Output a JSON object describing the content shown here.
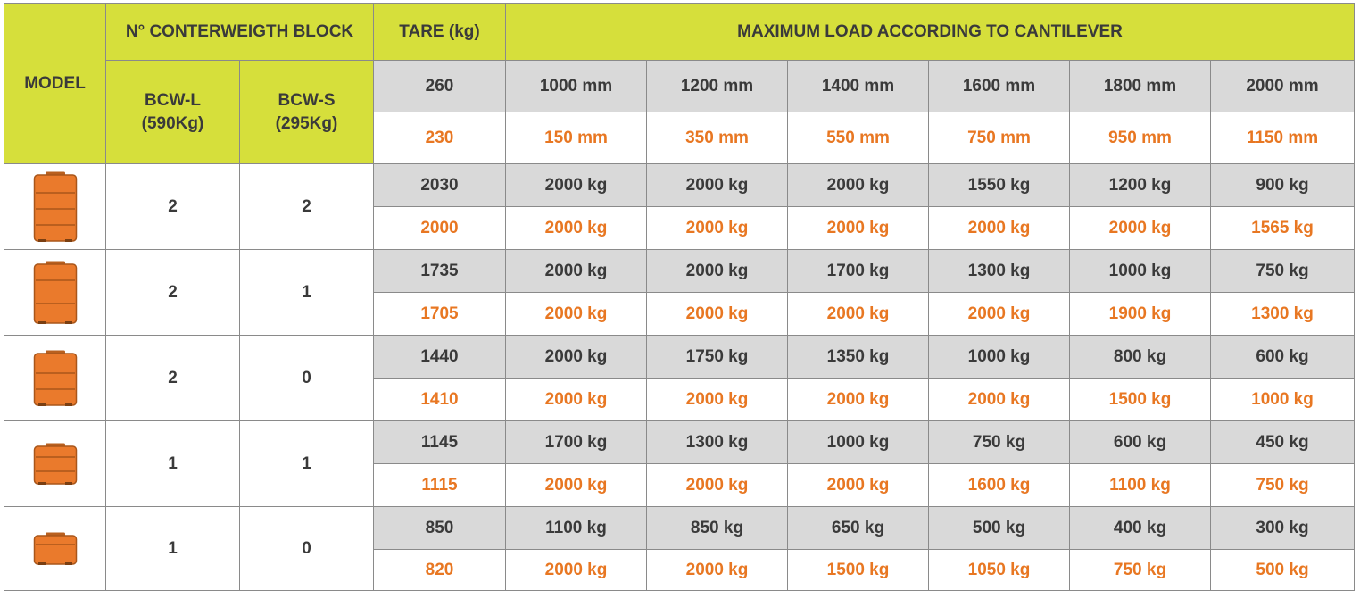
{
  "header": {
    "model": "MODEL",
    "counterweight": "N° CONTERWEIGTH BLOCK",
    "tare": "TARE (kg)",
    "max_load": "MAXIMUM LOAD ACCORDING TO CANTILEVER",
    "bcw_l_line1": "BCW-L",
    "bcw_l_line2": "(590Kg)",
    "bcw_s_line1": "BCW-S",
    "bcw_s_line2": "(295Kg)",
    "tare_gray": "260",
    "tare_orange": "230",
    "cantilevers_gray": [
      "1000 mm",
      "1200 mm",
      "1400 mm",
      "1600 mm",
      "1800 mm",
      "2000 mm"
    ],
    "cantilevers_orange": [
      "150 mm",
      "350 mm",
      "550 mm",
      "750 mm",
      "950 mm",
      "1150 mm"
    ]
  },
  "colors": {
    "header_bg": "#d6df3b",
    "gray_row": "#d9d9d9",
    "orange_text": "#e87722",
    "dark_text": "#3a3a3a"
  },
  "rows": [
    {
      "icon": "counterweight-stack-4-icon",
      "bcw_l": "2",
      "bcw_s": "2",
      "gray": {
        "tare": "2030",
        "loads": [
          "2000 kg",
          "2000 kg",
          "2000 kg",
          "1550 kg",
          "1200 kg",
          "900 kg"
        ]
      },
      "orange": {
        "tare": "2000",
        "loads": [
          "2000 kg",
          "2000 kg",
          "2000 kg",
          "2000 kg",
          "2000 kg",
          "1565 kg"
        ]
      }
    },
    {
      "icon": "counterweight-stack-3-icon",
      "bcw_l": "2",
      "bcw_s": "1",
      "gray": {
        "tare": "1735",
        "loads": [
          "2000 kg",
          "2000 kg",
          "1700 kg",
          "1300 kg",
          "1000 kg",
          "750 kg"
        ]
      },
      "orange": {
        "tare": "1705",
        "loads": [
          "2000 kg",
          "2000 kg",
          "2000 kg",
          "2000 kg",
          "1900 kg",
          "1300 kg"
        ]
      }
    },
    {
      "icon": "counterweight-stack-2l-icon",
      "bcw_l": "2",
      "bcw_s": "0",
      "gray": {
        "tare": "1440",
        "loads": [
          "2000 kg",
          "1750 kg",
          "1350 kg",
          "1000 kg",
          "800 kg",
          "600 kg"
        ]
      },
      "orange": {
        "tare": "1410",
        "loads": [
          "2000 kg",
          "2000 kg",
          "2000 kg",
          "2000 kg",
          "1500 kg",
          "1000 kg"
        ]
      }
    },
    {
      "icon": "counterweight-stack-2-icon",
      "bcw_l": "1",
      "bcw_s": "1",
      "gray": {
        "tare": "1145",
        "loads": [
          "1700 kg",
          "1300 kg",
          "1000 kg",
          "750 kg",
          "600 kg",
          "450 kg"
        ]
      },
      "orange": {
        "tare": "1115",
        "loads": [
          "2000 kg",
          "2000 kg",
          "2000 kg",
          "1600 kg",
          "1100 kg",
          "750 kg"
        ]
      }
    },
    {
      "icon": "counterweight-stack-1-icon",
      "bcw_l": "1",
      "bcw_s": "0",
      "gray": {
        "tare": "850",
        "loads": [
          "1100 kg",
          "850 kg",
          "650 kg",
          "500 kg",
          "400 kg",
          "300 kg"
        ]
      },
      "orange": {
        "tare": "820",
        "loads": [
          "2000 kg",
          "2000 kg",
          "1500 kg",
          "1050 kg",
          "750 kg",
          "500 kg"
        ]
      }
    }
  ]
}
